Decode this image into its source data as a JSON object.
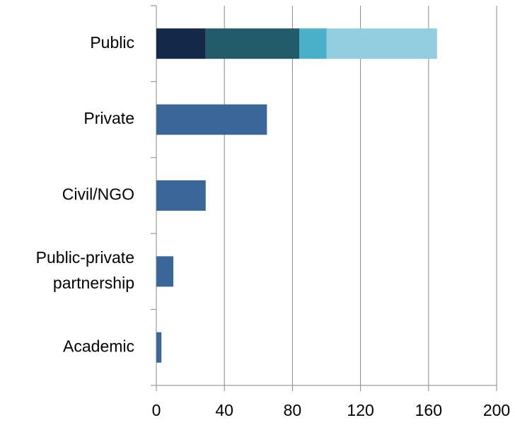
{
  "chart_data": {
    "type": "stacked-bar-horizontal",
    "categories": [
      "Public",
      "Private",
      "Civil/NGO",
      "Public-private\npartnership",
      "Academic"
    ],
    "series": [
      {
        "color": "#14284a",
        "values": [
          29,
          null,
          null,
          null,
          null
        ]
      },
      {
        "color": "#225c6b",
        "values": [
          55,
          null,
          null,
          null,
          null
        ]
      },
      {
        "color": "#4aafc8",
        "values": [
          16,
          null,
          null,
          null,
          null
        ]
      },
      {
        "color": "#92cde0",
        "values": [
          65,
          null,
          null,
          null,
          null
        ]
      },
      {
        "color": "#3a6699",
        "values": [
          null,
          65,
          29,
          10,
          3
        ]
      }
    ],
    "xlim": [
      0,
      200
    ],
    "xticks": [
      0,
      40,
      80,
      120,
      160,
      200
    ],
    "grid": true
  }
}
